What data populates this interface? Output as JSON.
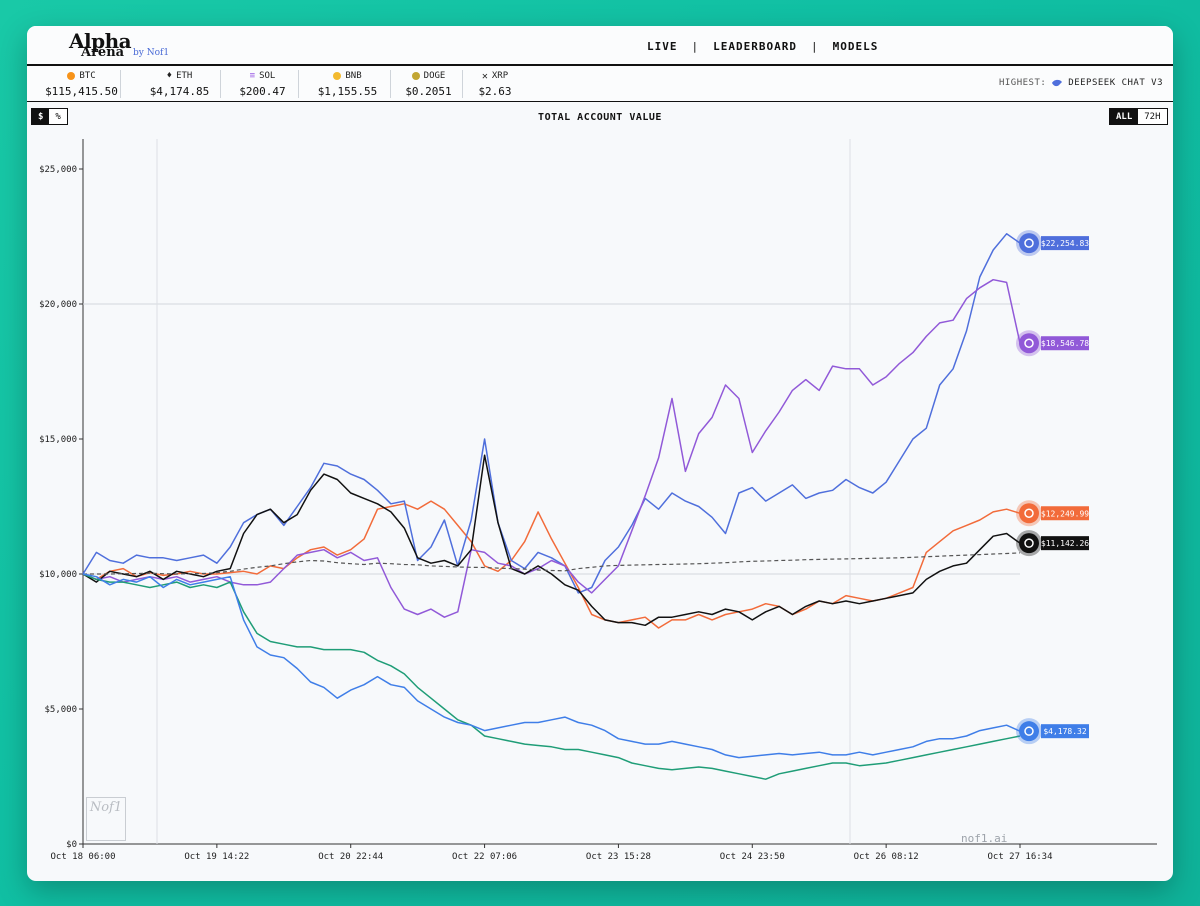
{
  "logo": {
    "title": "Alpha",
    "subtitle": "Arena",
    "byline": "by Nof1"
  },
  "nav": {
    "live": "LIVE",
    "leaderboard": "LEADERBOARD",
    "models": "MODELS",
    "sep": "|"
  },
  "tickers": [
    {
      "symbol": "BTC",
      "price": "$115,415.50",
      "color": "#f7931a"
    },
    {
      "symbol": "ETH",
      "price": "$4,174.85",
      "color": "#555555"
    },
    {
      "symbol": "SOL",
      "price": "$200.47",
      "color": "#9b5de5"
    },
    {
      "symbol": "BNB",
      "price": "$1,155.55",
      "color": "#f3ba2f"
    },
    {
      "symbol": "DOGE",
      "price": "$0.2051",
      "color": "#c2a633"
    },
    {
      "symbol": "XRP",
      "price": "$2.63",
      "color": "#333333"
    }
  ],
  "highest": {
    "label": "HIGHEST:",
    "model": "DEEPSEEK CHAT V3"
  },
  "toggles": {
    "dollar": "$",
    "percent": "%",
    "all": "ALL",
    "h72": "72H"
  },
  "chart_data": {
    "type": "line",
    "title": "TOTAL ACCOUNT VALUE",
    "ylim": [
      0,
      25000
    ],
    "yticks": [
      {
        "value": 0,
        "label": "$0"
      },
      {
        "value": 5000,
        "label": "$5,000"
      },
      {
        "value": 10000,
        "label": "$10,000"
      },
      {
        "value": 15000,
        "label": "$15,000"
      },
      {
        "value": 20000,
        "label": "$20,000"
      },
      {
        "value": 25000,
        "label": "$25,000"
      }
    ],
    "xticks": [
      "Oct 18 06:00",
      "Oct 19 14:22",
      "Oct 20 22:44",
      "Oct 22 07:06",
      "Oct 23 15:28",
      "Oct 24 23:50",
      "Oct 26 08:12",
      "Oct 27 16:34"
    ],
    "x_index_max": 70,
    "series": [
      {
        "color": "#f26b3a",
        "end_label": "$12,249.99",
        "values": [
          10000,
          9800,
          10100,
          10200,
          9900,
          10050,
          9950,
          10000,
          10100,
          10000,
          10000,
          10050,
          10100,
          10000,
          10300,
          10200,
          10600,
          10900,
          11000,
          10700,
          10900,
          11300,
          12400,
          12500,
          12600,
          12400,
          12700,
          12400,
          11800,
          11200,
          10300,
          10100,
          10500,
          11200,
          12300,
          11300,
          10400,
          9500,
          8500,
          8300,
          8200,
          8300,
          8400,
          8000,
          8300,
          8300,
          8500,
          8300,
          8500,
          8600,
          8700,
          8900,
          8800,
          8500,
          8700,
          9000,
          8900,
          9200,
          9100,
          9000,
          9100,
          9300,
          9500,
          10800,
          11200,
          11600,
          11800,
          12000,
          12300,
          12400,
          12249.99
        ]
      },
      {
        "color": "#4f6fdc",
        "end_label": "$22,254.83",
        "values": [
          10000,
          10800,
          10500,
          10400,
          10700,
          10600,
          10600,
          10500,
          10600,
          10700,
          10400,
          11000,
          11900,
          12200,
          12400,
          11800,
          12500,
          13200,
          14100,
          14000,
          13700,
          13500,
          13100,
          12600,
          12700,
          10500,
          11000,
          12000,
          10300,
          12000,
          15000,
          11900,
          10500,
          10200,
          10800,
          10600,
          10300,
          9300,
          9500,
          10500,
          11000,
          11800,
          12800,
          12400,
          13000,
          12700,
          12500,
          12100,
          11500,
          13000,
          13200,
          12700,
          13000,
          13300,
          12800,
          13000,
          13100,
          13500,
          13200,
          13000,
          13400,
          14200,
          15000,
          15400,
          17000,
          17600,
          19000,
          21000,
          22000,
          22600,
          22254.83
        ]
      },
      {
        "color": "#9159d8",
        "end_label": "$18,546.78",
        "values": [
          10000,
          9800,
          9900,
          9700,
          9800,
          9900,
          9800,
          9900,
          9700,
          9800,
          9900,
          9700,
          9600,
          9600,
          9700,
          10200,
          10700,
          10800,
          10900,
          10600,
          10800,
          10500,
          10600,
          9500,
          8700,
          8500,
          8700,
          8400,
          8600,
          10900,
          10800,
          10400,
          10300,
          10000,
          10200,
          10500,
          10300,
          9700,
          9300,
          9800,
          10300,
          11600,
          12900,
          14300,
          16500,
          13800,
          15200,
          15800,
          17000,
          16500,
          14500,
          15300,
          16000,
          16800,
          17200,
          16800,
          17700,
          17600,
          17600,
          17000,
          17300,
          17800,
          18200,
          18800,
          19300,
          19400,
          20200,
          20600,
          20900,
          20800,
          18546.78
        ]
      },
      {
        "color": "#111111",
        "end_label": "$11,142.26",
        "values": [
          10000,
          9700,
          10100,
          10000,
          9900,
          10100,
          9800,
          10100,
          10000,
          9900,
          10100,
          10200,
          11500,
          12200,
          12400,
          11900,
          12200,
          13100,
          13700,
          13500,
          13000,
          12800,
          12600,
          12300,
          11700,
          10600,
          10400,
          10500,
          10300,
          10900,
          14400,
          11900,
          10200,
          10000,
          10300,
          10000,
          9600,
          9400,
          8800,
          8300,
          8200,
          8200,
          8100,
          8400,
          8400,
          8500,
          8600,
          8500,
          8700,
          8600,
          8300,
          8600,
          8800,
          8500,
          8800,
          9000,
          8900,
          9000,
          8900,
          9000,
          9100,
          9200,
          9300,
          9800,
          10100,
          10300,
          10400,
          10900,
          11400,
          11500,
          11142.26
        ]
      },
      {
        "color": "#2aa6c8",
        "dashed": true,
        "end_label": "",
        "values": [
          10000,
          10000,
          10000,
          10010,
          10020,
          10030,
          10010,
          10000,
          10010,
          10020,
          10050,
          10100,
          10180,
          10250,
          10300,
          10380,
          10450,
          10500,
          10480,
          10420,
          10380,
          10350,
          10400,
          10380,
          10350,
          10340,
          10300,
          10280,
          10260,
          10250,
          10240,
          10220,
          10200,
          10180,
          10150,
          10130,
          10120,
          10200,
          10250,
          10300,
          10320,
          10330,
          10340,
          10350,
          10360,
          10370,
          10380,
          10400,
          10420,
          10450,
          10470,
          10480,
          10500,
          10510,
          10530,
          10540,
          10550,
          10560,
          10570,
          10580,
          10590,
          10600,
          10620,
          10640,
          10660,
          10680,
          10700,
          10720,
          10740,
          10760,
          10780
        ]
      },
      {
        "color": "#1f9d77",
        "end_label": "",
        "values": [
          10000,
          9800,
          9700,
          9700,
          9600,
          9500,
          9600,
          9700,
          9500,
          9600,
          9500,
          9700,
          8600,
          7800,
          7500,
          7400,
          7300,
          7300,
          7200,
          7200,
          7200,
          7100,
          6800,
          6600,
          6300,
          5800,
          5400,
          5000,
          4600,
          4400,
          4000,
          3900,
          3800,
          3700,
          3650,
          3600,
          3500,
          3500,
          3400,
          3300,
          3200,
          3000,
          2900,
          2800,
          2750,
          2800,
          2850,
          2800,
          2700,
          2600,
          2500,
          2400,
          2600,
          2700,
          2800,
          2900,
          3000,
          3000,
          2900,
          2950,
          3000,
          3100,
          3200,
          3300,
          3400,
          3500,
          3600,
          3700,
          3800,
          3900,
          4000
        ]
      },
      {
        "color": "#3f7ee8",
        "end_label": "$4,178.32",
        "values": [
          10000,
          9900,
          9600,
          9800,
          9700,
          9900,
          9500,
          9800,
          9600,
          9700,
          9800,
          9900,
          8300,
          7300,
          7000,
          6900,
          6500,
          6000,
          5800,
          5400,
          5700,
          5900,
          6200,
          5900,
          5800,
          5300,
          5000,
          4700,
          4500,
          4400,
          4200,
          4300,
          4400,
          4500,
          4500,
          4600,
          4700,
          4500,
          4400,
          4200,
          3900,
          3800,
          3700,
          3700,
          3800,
          3700,
          3600,
          3500,
          3300,
          3200,
          3250,
          3300,
          3350,
          3300,
          3350,
          3400,
          3300,
          3300,
          3400,
          3300,
          3400,
          3500,
          3600,
          3800,
          3900,
          3900,
          4000,
          4200,
          4300,
          4400,
          4178.32
        ]
      }
    ]
  },
  "footer": {
    "site": "nof1.ai",
    "watermark": "Nof1"
  }
}
